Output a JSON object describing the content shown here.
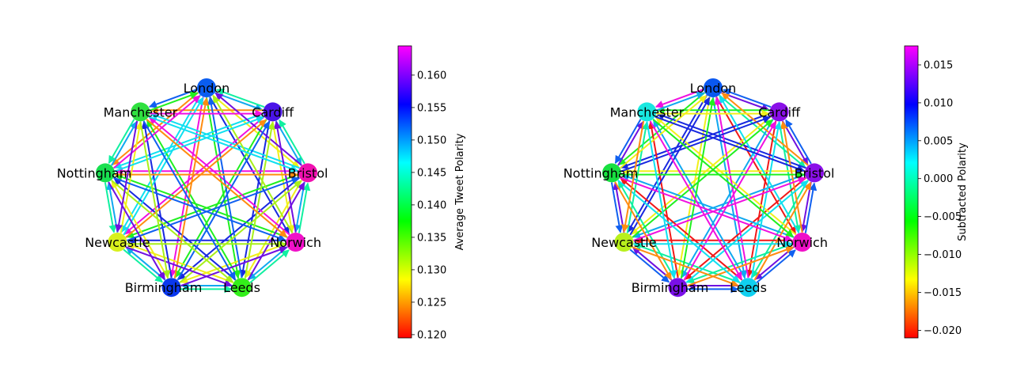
{
  "figure": {
    "panels": [
      {
        "id": "average",
        "nodes": [
          {
            "name": "London",
            "color": "#0a5df0"
          },
          {
            "name": "Cardiff",
            "color": "#4a14e8"
          },
          {
            "name": "Bristol",
            "color": "#f010b0"
          },
          {
            "name": "Norwich",
            "color": "#f010c8"
          },
          {
            "name": "Leeds",
            "color": "#33f01a"
          },
          {
            "name": "Birmingham",
            "color": "#0a38ee"
          },
          {
            "name": "Newcastle",
            "color": "#d8f01c"
          },
          {
            "name": "Nottingham",
            "color": "#18e050"
          },
          {
            "name": "Manchester",
            "color": "#30e040"
          }
        ],
        "colorbar": {
          "title": "Average Tweet Polarity",
          "min": 0.1195,
          "max": 0.1645,
          "ticks": [
            "0.120",
            "0.125",
            "0.130",
            "0.135",
            "0.140",
            "0.145",
            "0.150",
            "0.155",
            "0.160"
          ],
          "tick_values": [
            0.12,
            0.125,
            0.13,
            0.135,
            0.14,
            0.145,
            0.15,
            0.155,
            0.16
          ]
        }
      },
      {
        "id": "subtracted",
        "nodes": [
          {
            "name": "London",
            "color": "#0a58f0"
          },
          {
            "name": "Cardiff",
            "color": "#8a10e8"
          },
          {
            "name": "Bristol",
            "color": "#8a10e8"
          },
          {
            "name": "Norwich",
            "color": "#f010c8"
          },
          {
            "name": "Leeds",
            "color": "#10d0f0"
          },
          {
            "name": "Birmingham",
            "color": "#7a10e8"
          },
          {
            "name": "Newcastle",
            "color": "#b8f01c"
          },
          {
            "name": "Nottingham",
            "color": "#18e040"
          },
          {
            "name": "Manchester",
            "color": "#18e8e0"
          }
        ],
        "colorbar": {
          "title": "Subtracted Polarity",
          "min": -0.021,
          "max": 0.0175,
          "ticks": [
            "−0.020",
            "−0.015",
            "−0.010",
            "−0.005",
            "0.000",
            "0.005",
            "0.010",
            "0.015"
          ],
          "tick_values": [
            -0.02,
            -0.015,
            -0.01,
            -0.005,
            0.0,
            0.005,
            0.01,
            0.015
          ]
        }
      }
    ],
    "edge_colors": [
      "#f01818",
      "#ff8c10",
      "#f0f01a",
      "#a8f01a",
      "#20f020",
      "#10f0a0",
      "#10e0f0",
      "#10a8f0",
      "#1060f0",
      "#1828e0",
      "#7010e0",
      "#f010e0"
    ]
  }
}
